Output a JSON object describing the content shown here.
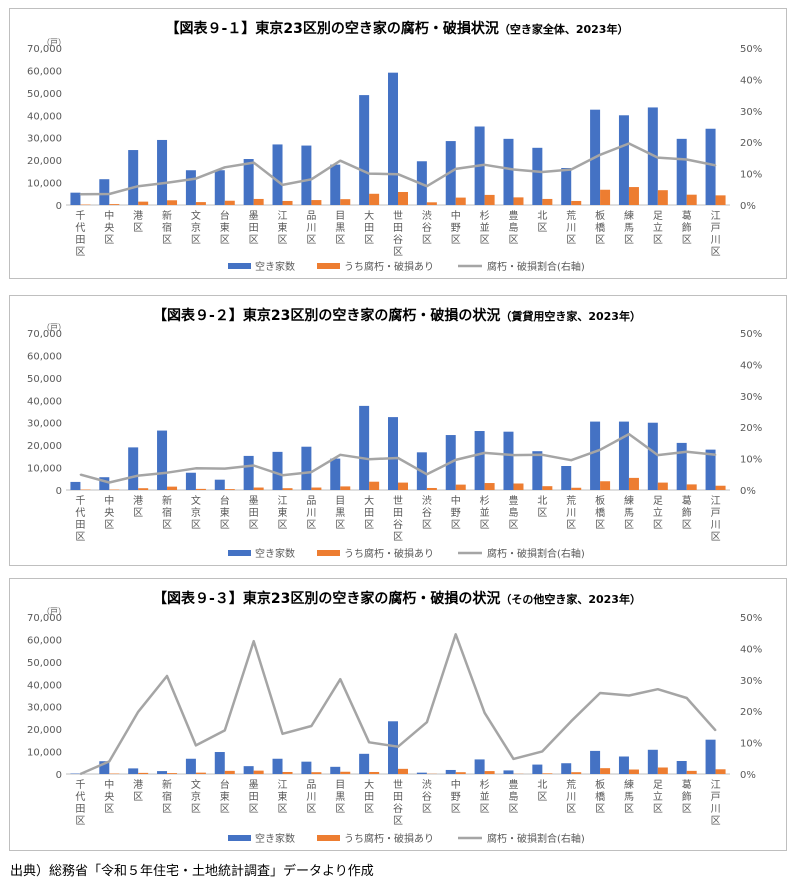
{
  "source_note": "出典）総務省「令和５年住宅・土地統計調査」データより作成",
  "chart_data": [
    {
      "type": "bar",
      "title": "【図表９-１】東京23区別の空き家の腐朽・破損状況",
      "subtitle": "（空き家全体、2023年）",
      "y_unit_label": "（戸）",
      "ylim": [
        0,
        70000
      ],
      "yticks": [
        "0",
        "10,000",
        "20,000",
        "30,000",
        "40,000",
        "50,000",
        "60,000",
        "70,000"
      ],
      "y2lim": [
        0,
        50
      ],
      "y2ticks": [
        "0%",
        "10%",
        "20%",
        "30%",
        "40%",
        "50%"
      ],
      "categories": [
        "千代田区",
        "中央区",
        "港区",
        "新宿区",
        "文京区",
        "台東区",
        "墨田区",
        "江東区",
        "品川区",
        "目黒区",
        "大田区",
        "世田谷区",
        "渋谷区",
        "中野区",
        "杉並区",
        "豊島区",
        "北区",
        "荒川区",
        "板橋区",
        "練馬区",
        "足立区",
        "葛飾区",
        "江戸川区"
      ],
      "series": [
        {
          "name": "空き家数",
          "kind": "bar",
          "color": "#4472c4",
          "values": [
            5500,
            11500,
            24500,
            29000,
            15500,
            15500,
            20500,
            27000,
            26500,
            18000,
            49000,
            59000,
            19500,
            28500,
            35000,
            29500,
            25500,
            16500,
            42500,
            40000,
            43500,
            29500,
            34000
          ]
        },
        {
          "name": "うち腐朽・破損あり",
          "kind": "bar",
          "color": "#ed7d31",
          "values": [
            200,
            400,
            1500,
            2100,
            1300,
            1900,
            2700,
            1800,
            2200,
            2600,
            5000,
            5800,
            1200,
            3300,
            4500,
            3400,
            2700,
            1800,
            6800,
            8000,
            6600,
            4600,
            4300
          ]
        },
        {
          "name": "腐朽・破損割合(右軸)",
          "kind": "line",
          "axis": "right",
          "color": "#a5a5a5",
          "values": [
            3.4,
            3.5,
            6.0,
            7.1,
            8.4,
            12.0,
            13.5,
            6.4,
            8.2,
            14.1,
            10.0,
            9.8,
            6.0,
            11.5,
            12.8,
            11.3,
            10.5,
            11.3,
            16.0,
            19.6,
            15.1,
            14.5,
            12.6
          ]
        }
      ],
      "legend_position": "bottom"
    },
    {
      "type": "bar",
      "title": "【図表９-２】東京23区別の空き家の腐朽・破損の状況",
      "subtitle": "（賃貸用空き家、2023年）",
      "y_unit_label": "（戸）",
      "ylim": [
        0,
        70000
      ],
      "yticks": [
        "0",
        "10,000",
        "20,000",
        "30,000",
        "40,000",
        "50,000",
        "60,000",
        "70,000"
      ],
      "y2lim": [
        0,
        50
      ],
      "y2ticks": [
        "0%",
        "10%",
        "20%",
        "30%",
        "40%",
        "50%"
      ],
      "categories": [
        "千代田区",
        "中央区",
        "港区",
        "新宿区",
        "文京区",
        "台東区",
        "墨田区",
        "江東区",
        "品川区",
        "目黒区",
        "大田区",
        "世田谷区",
        "渋谷区",
        "中野区",
        "杉並区",
        "豊島区",
        "北区",
        "荒川区",
        "板橋区",
        "練馬区",
        "足立区",
        "葛飾区",
        "江戸川区"
      ],
      "series": [
        {
          "name": "空き家数",
          "kind": "bar",
          "color": "#4472c4",
          "values": [
            3600,
            5700,
            19000,
            26500,
            7700,
            4600,
            15200,
            17000,
            19300,
            14000,
            37500,
            32500,
            16800,
            24500,
            26300,
            26000,
            17300,
            10700,
            30500,
            30500,
            30000,
            21000,
            18000
          ]
        },
        {
          "name": "うち腐朽・破損あり",
          "kind": "bar",
          "color": "#ed7d31",
          "values": [
            200,
            200,
            800,
            1500,
            500,
            400,
            1100,
            800,
            1100,
            1600,
            3700,
            3300,
            900,
            2400,
            3100,
            2900,
            1700,
            1000,
            3900,
            5400,
            3300,
            2500,
            1900
          ]
        },
        {
          "name": "腐朽・破損割合(右軸)",
          "kind": "line",
          "axis": "right",
          "color": "#a5a5a5",
          "values": [
            4.9,
            2.4,
            4.6,
            5.5,
            6.9,
            6.8,
            7.8,
            4.7,
            5.7,
            11.2,
            9.8,
            10.2,
            5.0,
            9.6,
            11.8,
            11.1,
            11.2,
            9.5,
            12.8,
            17.8,
            11.1,
            12.2,
            11.2
          ]
        }
      ],
      "legend_position": "bottom"
    },
    {
      "type": "bar",
      "title": "【図表９-３】東京23区別の空き家の腐朽・破損の状況",
      "subtitle": "（その他空き家、2023年）",
      "y_unit_label": "（戸）",
      "ylim": [
        0,
        70000
      ],
      "yticks": [
        "0",
        "10,000",
        "20,000",
        "30,000",
        "40,000",
        "50,000",
        "60,000",
        "70,000"
      ],
      "y2lim": [
        0,
        50
      ],
      "y2ticks": [
        "0%",
        "10%",
        "20%",
        "30%",
        "40%",
        "50%"
      ],
      "categories": [
        "千代田区",
        "中央区",
        "港区",
        "新宿区",
        "文京区",
        "台東区",
        "墨田区",
        "江東区",
        "品川区",
        "目黒区",
        "大田区",
        "世田谷区",
        "渋谷区",
        "中野区",
        "杉並区",
        "豊島区",
        "北区",
        "荒川区",
        "板橋区",
        "練馬区",
        "足立区",
        "葛飾区",
        "江戸川区"
      ],
      "series": [
        {
          "name": "空き家数",
          "kind": "bar",
          "color": "#4472c4",
          "values": [
            200,
            5700,
            2500,
            1300,
            6800,
            9800,
            3500,
            6800,
            5500,
            3200,
            9000,
            23500,
            600,
            1800,
            6500,
            1600,
            4200,
            4800,
            10300,
            7800,
            10800,
            5800,
            15300
          ]
        },
        {
          "name": "うち腐朽・破損あり",
          "kind": "bar",
          "color": "#ed7d31",
          "values": [
            0,
            200,
            500,
            400,
            600,
            1400,
            1500,
            900,
            800,
            1000,
            900,
            2300,
            100,
            800,
            1300,
            100,
            300,
            800,
            2600,
            2000,
            2900,
            1400,
            2100
          ]
        },
        {
          "name": "腐朽・破損割合(右軸)",
          "kind": "line",
          "axis": "right",
          "color": "#a5a5a5",
          "values": [
            0,
            4.0,
            19.8,
            31.2,
            9.1,
            13.9,
            42.3,
            12.8,
            15.3,
            30.2,
            10.1,
            8.7,
            16.5,
            44.5,
            19.5,
            4.8,
            7.2,
            16.8,
            25.8,
            25.0,
            27.0,
            24.2,
            13.9
          ]
        }
      ],
      "legend_position": "bottom"
    }
  ]
}
